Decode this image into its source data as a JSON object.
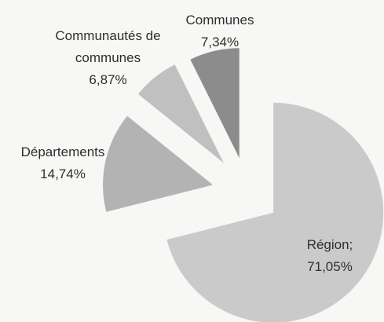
{
  "chart_data": {
    "type": "pie",
    "categories": [
      "Région;",
      "Départements",
      "Communautés de communes",
      "Communes"
    ],
    "values": [
      71.05,
      14.74,
      6.87,
      7.34
    ],
    "value_labels": [
      "71,05%",
      "14,74%",
      "6,87%",
      "7,34%"
    ],
    "colors": [
      "#cacaca",
      "#b3b3b3",
      "#c0c0c0",
      "#8c8c8c"
    ]
  }
}
